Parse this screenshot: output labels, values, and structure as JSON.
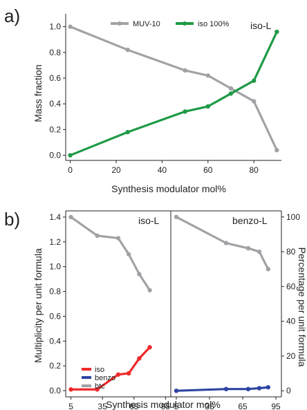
{
  "colors": {
    "muv10": "#a2a2a6",
    "iso": "#1e9a46",
    "iso_red": "#ee2a2a",
    "benzo": "#2d45a3",
    "btc": "#a2a2a6",
    "axis": "#222222"
  },
  "chart_data": [
    {
      "panel": "a)",
      "type": "line",
      "tag": "iso-L",
      "xlabel": "Synthesis modulator mol%",
      "ylabel": "Mass fraction",
      "xlim": [
        -2,
        92
      ],
      "ylim": [
        -0.04,
        1.1
      ],
      "xticks": [
        0,
        20,
        40,
        60,
        80
      ],
      "yticks": [
        0.0,
        0.2,
        0.4,
        0.6,
        0.8,
        1.0
      ],
      "ytick_labels": [
        "0.0",
        "0.2",
        "0.4",
        "0.6",
        "0.8",
        "1.0"
      ],
      "legend": {
        "placement": "top-center",
        "orientation": "horizontal"
      },
      "series": [
        {
          "name": "MUV-10",
          "color": "#a2a2a6",
          "x": [
            0,
            25,
            50,
            60,
            70,
            80,
            90
          ],
          "values": [
            1.0,
            0.82,
            0.66,
            0.62,
            0.52,
            0.42,
            0.04
          ]
        },
        {
          "name": "iso 100%",
          "color": "#1e9a46",
          "x": [
            0,
            25,
            50,
            60,
            70,
            80,
            90
          ],
          "values": [
            0.0,
            0.18,
            0.34,
            0.38,
            0.48,
            0.58,
            0.96
          ]
        }
      ]
    },
    {
      "panel": "b)",
      "type": "line",
      "tag": "iso-L",
      "xlabel": "Synthesis modulator mol%",
      "ylabel": "Multiplicity per unit formula",
      "xlim": [
        0,
        100
      ],
      "ylim": [
        -0.05,
        1.45
      ],
      "xticks": [
        5,
        35,
        65,
        95
      ],
      "yticks": [
        0.0,
        0.2,
        0.4,
        0.6,
        0.8,
        1.0,
        1.2,
        1.4
      ],
      "ytick_labels": [
        "0.0",
        "0.2",
        "0.4",
        "0.6",
        "0.8",
        "1.0",
        "1.2",
        "1.4"
      ],
      "legend": {
        "placement": "bottom-left",
        "orientation": "vertical"
      },
      "series": [
        {
          "name": "iso",
          "color": "#ee2a2a",
          "x": [
            5,
            30,
            50,
            60,
            70,
            80
          ],
          "values": [
            0.01,
            0.01,
            0.13,
            0.14,
            0.26,
            0.35
          ]
        },
        {
          "name": "benzo",
          "color": "#2d45a3",
          "x": [],
          "values": []
        },
        {
          "name": "btc",
          "color": "#a2a2a6",
          "x": [
            5,
            30,
            50,
            60,
            70,
            80
          ],
          "values": [
            1.4,
            1.25,
            1.23,
            1.1,
            0.94,
            0.81
          ]
        }
      ]
    },
    {
      "panel": "",
      "type": "line",
      "tag": "benzo-L",
      "xlabel": "",
      "ylabel": "Percentage per unit formula",
      "xlim": [
        0,
        100
      ],
      "ylim": [
        -3.5,
        103.5
      ],
      "xticks": [
        5,
        35,
        65,
        95
      ],
      "yticks": [
        0,
        20,
        40,
        60,
        80,
        100
      ],
      "ytick_labels": [
        "0",
        "20",
        "40",
        "60",
        "80",
        "100"
      ],
      "series": [
        {
          "name": "btc",
          "color": "#a2a2a6",
          "x": [
            5,
            50,
            70,
            80,
            88
          ],
          "values": [
            100,
            85,
            82,
            80,
            70
          ]
        },
        {
          "name": "benzo",
          "color": "#2d45a3",
          "x": [
            5,
            50,
            70,
            80,
            88
          ],
          "values": [
            0,
            1,
            1,
            1.5,
            2
          ]
        }
      ]
    }
  ]
}
